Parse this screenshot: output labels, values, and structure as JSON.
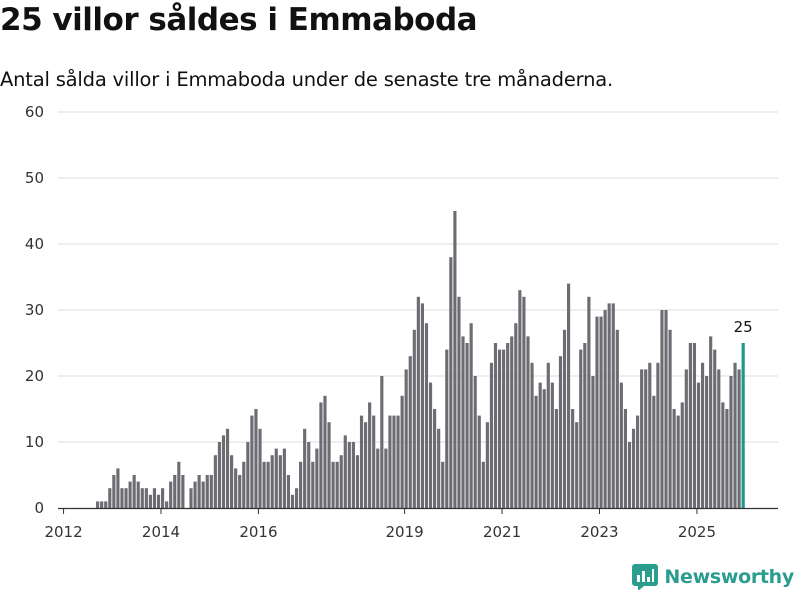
{
  "title": "25 villor såldes i Emmaboda",
  "subtitle": "Antal sålda villor i Emmaboda under de senaste tre månaderna.",
  "brand": {
    "name": "Newsworthy",
    "logo": "newsworthy-logo-icon"
  },
  "colors": {
    "bar": "#6d6c72",
    "highlight": "#1a998c",
    "grid": "#dedede",
    "axis": "#333333",
    "brand": "#2a9d8f"
  },
  "chart_data": {
    "type": "bar",
    "start": "2011-12",
    "period": "month",
    "ylim": [
      0,
      60
    ],
    "yticks": [
      0,
      10,
      20,
      30,
      40,
      50,
      60
    ],
    "xticks": [
      "2012",
      "2014",
      "2016",
      "2019",
      "2021",
      "2023",
      "2025"
    ],
    "grid": true,
    "annotation": {
      "label": "25",
      "value": 25
    },
    "values": [
      0,
      0,
      0,
      0,
      0,
      0,
      0,
      0,
      0,
      1,
      1,
      1,
      3,
      5,
      6,
      3,
      3,
      4,
      5,
      4,
      3,
      3,
      2,
      3,
      2,
      3,
      1,
      4,
      5,
      7,
      5,
      0,
      3,
      4,
      5,
      4,
      5,
      5,
      8,
      10,
      11,
      12,
      8,
      6,
      5,
      7,
      10,
      14,
      15,
      12,
      7,
      7,
      8,
      9,
      8,
      9,
      5,
      2,
      3,
      7,
      12,
      10,
      7,
      9,
      16,
      17,
      13,
      7,
      7,
      8,
      11,
      10,
      10,
      8,
      14,
      13,
      16,
      14,
      9,
      20,
      9,
      14,
      14,
      14,
      17,
      21,
      23,
      27,
      32,
      31,
      28,
      19,
      15,
      12,
      7,
      24,
      38,
      45,
      32,
      26,
      25,
      28,
      20,
      14,
      7,
      13,
      22,
      25,
      24,
      24,
      25,
      26,
      28,
      33,
      32,
      26,
      22,
      17,
      19,
      18,
      22,
      19,
      15,
      23,
      27,
      34,
      15,
      13,
      24,
      25,
      32,
      20,
      29,
      29,
      30,
      31,
      31,
      27,
      19,
      15,
      10,
      12,
      14,
      21,
      21,
      22,
      17,
      22,
      30,
      30,
      27,
      15,
      14,
      16,
      21,
      25,
      25,
      19,
      22,
      20,
      26,
      24,
      21,
      16,
      15,
      20,
      22,
      21,
      25
    ]
  }
}
